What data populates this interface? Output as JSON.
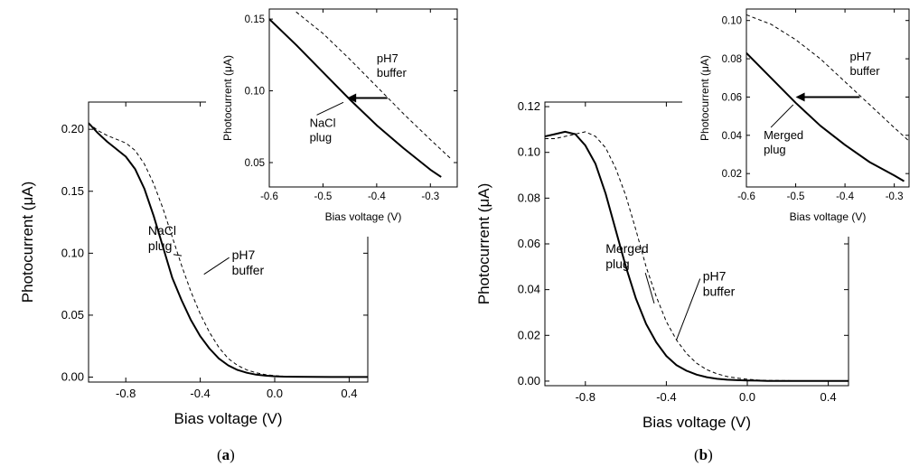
{
  "chart_data": [
    {
      "id": "a",
      "type": "line",
      "xlabel": "Bias voltage (V)",
      "ylabel": "Photocurrent (μA)",
      "xlim": [
        -1.0,
        0.5
      ],
      "ylim": [
        -0.004,
        0.222
      ],
      "xticks": [
        -0.8,
        -0.4,
        0.0,
        0.4
      ],
      "xtick_labels": [
        "-0.8",
        "-0.4",
        "0.0",
        "0.4"
      ],
      "yticks": [
        0.0,
        0.05,
        0.1,
        0.15,
        0.2
      ],
      "ytick_labels": [
        "0.00",
        "0.05",
        "0.10",
        "0.15",
        "0.20"
      ],
      "caption": {
        "open": "(",
        "letter": "a",
        "close": ")"
      },
      "series": [
        {
          "name": "NaCl plug",
          "style": "solid",
          "x": [
            -1.0,
            -0.95,
            -0.9,
            -0.85,
            -0.8,
            -0.75,
            -0.7,
            -0.65,
            -0.6,
            -0.55,
            -0.5,
            -0.45,
            -0.4,
            -0.35,
            -0.3,
            -0.25,
            -0.2,
            -0.15,
            -0.1,
            -0.05,
            0.0,
            0.05,
            0.1,
            0.2,
            0.3,
            0.4,
            0.5
          ],
          "y": [
            0.205,
            0.197,
            0.19,
            0.184,
            0.178,
            0.168,
            0.152,
            0.13,
            0.105,
            0.08,
            0.062,
            0.046,
            0.033,
            0.023,
            0.015,
            0.0095,
            0.0058,
            0.0035,
            0.002,
            0.0012,
            0.0007,
            0.0004,
            0.0003,
            0.0002,
            0.0001,
            0.0001,
            0.0001
          ]
        },
        {
          "name": "pH7 buffer",
          "style": "dashed",
          "x": [
            -1.0,
            -0.95,
            -0.9,
            -0.85,
            -0.8,
            -0.75,
            -0.7,
            -0.65,
            -0.6,
            -0.55,
            -0.5,
            -0.45,
            -0.4,
            -0.35,
            -0.3,
            -0.25,
            -0.2,
            -0.15,
            -0.1,
            -0.05,
            0.0,
            0.05,
            0.1,
            0.2,
            0.3,
            0.4,
            0.5
          ],
          "y": [
            0.205,
            0.199,
            0.195,
            0.192,
            0.189,
            0.183,
            0.172,
            0.156,
            0.136,
            0.113,
            0.09,
            0.069,
            0.051,
            0.036,
            0.024,
            0.015,
            0.0095,
            0.0058,
            0.0035,
            0.002,
            0.0012,
            0.0007,
            0.0004,
            0.0002,
            0.0001,
            0.0001,
            0.0001
          ]
        }
      ],
      "annotations": [
        {
          "lines": [
            "NaCl",
            "plug"
          ],
          "x": -0.68,
          "y": 0.115,
          "target_x": -0.5,
          "target_y": 0.098
        },
        {
          "lines": [
            "pH7",
            "buffer"
          ],
          "x": -0.23,
          "y": 0.095,
          "target_x": -0.38,
          "target_y": 0.083
        }
      ],
      "inset": {
        "xlabel": "Bias voltage (V)",
        "ylabel": "Photocurrent (μA)",
        "xlim": [
          -0.6,
          -0.25
        ],
        "ylim": [
          0.033,
          0.157
        ],
        "xticks": [
          -0.6,
          -0.5,
          -0.4,
          -0.3
        ],
        "xtick_labels": [
          "-0.6",
          "-0.5",
          "-0.4",
          "-0.3"
        ],
        "yticks": [
          0.05,
          0.1,
          0.15
        ],
        "ytick_labels": [
          "0.05",
          "0.10",
          "0.15"
        ],
        "series": [
          {
            "name": "NaCl plug",
            "style": "solid",
            "x": [
              -0.6,
              -0.55,
              -0.5,
              -0.45,
              -0.4,
              -0.35,
              -0.3,
              -0.28
            ],
            "y": [
              0.15,
              0.132,
              0.113,
              0.094,
              0.076,
              0.06,
              0.045,
              0.04
            ]
          },
          {
            "name": "pH7 buffer",
            "style": "dashed",
            "x": [
              -0.55,
              -0.5,
              -0.45,
              -0.4,
              -0.35,
              -0.3,
              -0.26
            ],
            "y": [
              0.155,
              0.14,
              0.122,
              0.103,
              0.084,
              0.066,
              0.052
            ]
          }
        ],
        "arrow": {
          "from_x": -0.38,
          "to_x": -0.455,
          "y": 0.095
        },
        "annotations": [
          {
            "lines": [
              "pH7",
              "buffer"
            ],
            "x": -0.4,
            "y": 0.12
          },
          {
            "lines": [
              "NaCl",
              "plug"
            ],
            "x": -0.525,
            "y": 0.075,
            "target_x": -0.462,
            "target_y": 0.092
          }
        ]
      }
    },
    {
      "id": "b",
      "type": "line",
      "xlabel": "Bias voltage (V)",
      "ylabel": "Photocurrent (μA)",
      "xlim": [
        -1.0,
        0.5
      ],
      "ylim": [
        -0.002,
        0.122
      ],
      "xticks": [
        -0.8,
        -0.4,
        0.0,
        0.4
      ],
      "xtick_labels": [
        "-0.8",
        "-0.4",
        "0.0",
        "0.4"
      ],
      "yticks": [
        0.0,
        0.02,
        0.04,
        0.06,
        0.08,
        0.1,
        0.12
      ],
      "ytick_labels": [
        "0.00",
        "0.02",
        "0.04",
        "0.06",
        "0.08",
        "0.10",
        "0.12"
      ],
      "caption": {
        "open": "(",
        "letter": "b",
        "close": ")"
      },
      "series": [
        {
          "name": "Merged plug",
          "style": "solid",
          "x": [
            -1.0,
            -0.95,
            -0.9,
            -0.85,
            -0.8,
            -0.75,
            -0.7,
            -0.65,
            -0.6,
            -0.55,
            -0.5,
            -0.45,
            -0.4,
            -0.35,
            -0.3,
            -0.25,
            -0.2,
            -0.15,
            -0.1,
            -0.05,
            0.0,
            0.05,
            0.1,
            0.2,
            0.3,
            0.4,
            0.5
          ],
          "y": [
            0.107,
            0.108,
            0.109,
            0.108,
            0.103,
            0.095,
            0.082,
            0.066,
            0.05,
            0.036,
            0.025,
            0.017,
            0.011,
            0.007,
            0.0045,
            0.0028,
            0.0017,
            0.001,
            0.0006,
            0.0004,
            0.0003,
            0.0002,
            0.0001,
            0.0001,
            0.0001,
            0.0001,
            0.0001
          ]
        },
        {
          "name": "pH7 buffer",
          "style": "dashed",
          "x": [
            -1.0,
            -0.95,
            -0.9,
            -0.85,
            -0.8,
            -0.75,
            -0.7,
            -0.65,
            -0.6,
            -0.55,
            -0.5,
            -0.45,
            -0.4,
            -0.35,
            -0.3,
            -0.25,
            -0.2,
            -0.15,
            -0.1,
            -0.05,
            0.0,
            0.05,
            0.1,
            0.2,
            0.3,
            0.4,
            0.5
          ],
          "y": [
            0.106,
            0.106,
            0.107,
            0.108,
            0.109,
            0.107,
            0.102,
            0.093,
            0.081,
            0.066,
            0.05,
            0.037,
            0.026,
            0.018,
            0.012,
            0.0078,
            0.005,
            0.0032,
            0.002,
            0.0013,
            0.0008,
            0.0005,
            0.0003,
            0.0002,
            0.0001,
            0.0001,
            0.0001
          ]
        }
      ],
      "annotations": [
        {
          "lines": [
            "Merged",
            "plug"
          ],
          "x": -0.7,
          "y": 0.056,
          "target_x": -0.46,
          "target_y": 0.034
        },
        {
          "lines": [
            "pH7",
            "buffer"
          ],
          "x": -0.22,
          "y": 0.044,
          "target_x": -0.35,
          "target_y": 0.018
        }
      ],
      "inset": {
        "xlabel": "Bias voltage (V)",
        "ylabel": "Photocurrent (μA)",
        "xlim": [
          -0.6,
          -0.27
        ],
        "ylim": [
          0.013,
          0.106
        ],
        "xticks": [
          -0.6,
          -0.5,
          -0.4,
          -0.3
        ],
        "xtick_labels": [
          "-0.6",
          "-0.5",
          "-0.4",
          "-0.3"
        ],
        "yticks": [
          0.02,
          0.04,
          0.06,
          0.08,
          0.1
        ],
        "ytick_labels": [
          "0.02",
          "0.04",
          "0.06",
          "0.08",
          "0.10"
        ],
        "series": [
          {
            "name": "Merged plug",
            "style": "solid",
            "x": [
              -0.6,
              -0.55,
              -0.5,
              -0.45,
              -0.4,
              -0.35,
              -0.3,
              -0.28
            ],
            "y": [
              0.083,
              0.07,
              0.057,
              0.045,
              0.035,
              0.026,
              0.019,
              0.016
            ]
          },
          {
            "name": "pH7 buffer",
            "style": "dashed",
            "x": [
              -0.6,
              -0.55,
              -0.5,
              -0.45,
              -0.4,
              -0.35,
              -0.3,
              -0.27
            ],
            "y": [
              0.103,
              0.098,
              0.09,
              0.08,
              0.068,
              0.056,
              0.044,
              0.037
            ]
          }
        ],
        "arrow": {
          "from_x": -0.37,
          "to_x": -0.5,
          "y": 0.06
        },
        "annotations": [
          {
            "lines": [
              "pH7",
              "buffer"
            ],
            "x": -0.39,
            "y": 0.079
          },
          {
            "lines": [
              "Merged",
              "plug"
            ],
            "x": -0.565,
            "y": 0.038,
            "target_x": -0.505,
            "target_y": 0.056
          }
        ]
      }
    }
  ]
}
